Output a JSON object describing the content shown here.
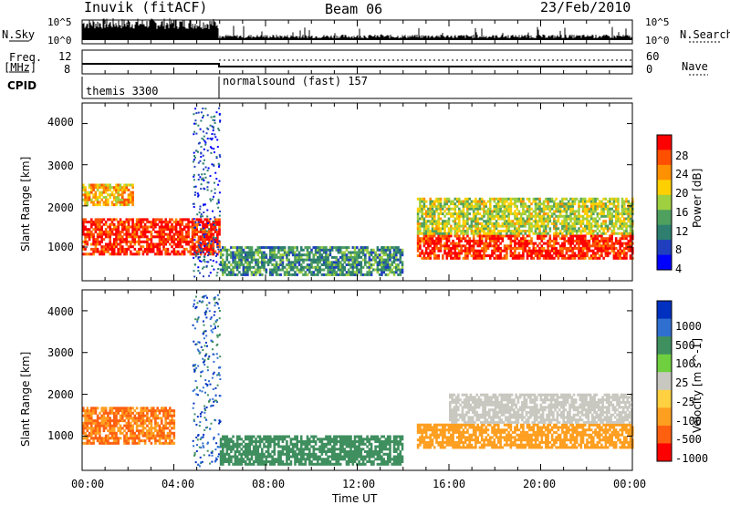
{
  "header": {
    "station": "Inuvik (fitACF)",
    "beam": "Beam 06",
    "date": "23/Feb/2010"
  },
  "strip_labels": {
    "nsky": "N.Sky",
    "nsearch": "N.Search",
    "freq_top": "Freq.",
    "freq_unit": "[MHz]",
    "nave": "Nave",
    "cpid": "CPID"
  },
  "strip_ticks": {
    "nsky_left": [
      "10^5",
      "10^0"
    ],
    "nsearch_right": [
      "10^5",
      "10^0"
    ],
    "freq_left": [
      "12",
      "8"
    ],
    "nave_right": [
      "60",
      "0"
    ]
  },
  "cpid_segments": [
    {
      "label": "themis 3300",
      "start_h": 0,
      "end_h": 6
    },
    {
      "label": "normalsound (fast) 157",
      "start_h": 6,
      "end_h": 24
    }
  ],
  "xlabel": "Time UT",
  "colors": {
    "power_scale": [
      "#0000ff",
      "#1f3fbf",
      "#2e7f6f",
      "#4fa05f",
      "#9fd040",
      "#ffd000",
      "#ff9000",
      "#ff5000",
      "#ff0000"
    ],
    "velocity_scale": [
      "#0030c0",
      "#2f6fd0",
      "#3f8f5f",
      "#6fcf3f",
      "#c8c8c0",
      "#ffd040",
      "#ff9f20",
      "#ff6010",
      "#ff0000"
    ]
  },
  "chart_data": [
    {
      "type": "heatmap",
      "title": "",
      "xlabel": "Time UT",
      "ylabel": "Slant Range [km]",
      "x_ticks": [
        "00:00",
        "04:00",
        "08:00",
        "12:00",
        "16:00",
        "20:00",
        "00:00"
      ],
      "xlim": [
        0,
        24
      ],
      "ylim": [
        180,
        4500
      ],
      "y_ticks": [
        1000,
        2000,
        3000,
        4000
      ],
      "colorbar": {
        "label": "Power [dB]",
        "ticks": [
          4,
          8,
          12,
          16,
          20,
          24,
          28
        ],
        "range": [
          0,
          30
        ]
      },
      "regions": [
        {
          "t": [
            0,
            6
          ],
          "r": [
            800,
            1700
          ],
          "value": 27
        },
        {
          "t": [
            0,
            2.2
          ],
          "r": [
            2000,
            2500
          ],
          "value": 20
        },
        {
          "t": [
            6,
            14
          ],
          "r": [
            300,
            1000
          ],
          "value": 10
        },
        {
          "t": [
            14.6,
            24
          ],
          "r": [
            700,
            1300
          ],
          "value": 27
        },
        {
          "t": [
            14.6,
            24
          ],
          "r": [
            1300,
            2200
          ],
          "value": 16
        }
      ]
    },
    {
      "type": "heatmap",
      "title": "",
      "xlabel": "Time UT",
      "ylabel": "Slant Range [km]",
      "x_ticks": [
        "00:00",
        "04:00",
        "08:00",
        "12:00",
        "16:00",
        "20:00",
        "00:00"
      ],
      "xlim": [
        0,
        24
      ],
      "ylim": [
        180,
        4500
      ],
      "y_ticks": [
        1000,
        2000,
        3000,
        4000
      ],
      "colorbar": {
        "label": "Velocity [m s^-1]",
        "ticks": [
          1000,
          500,
          100,
          25,
          -25,
          -100,
          -500,
          -1000
        ]
      },
      "regions": [
        {
          "t": [
            0,
            4
          ],
          "r": [
            800,
            1700
          ],
          "value": -300
        },
        {
          "t": [
            6,
            14
          ],
          "r": [
            300,
            1000
          ],
          "value": 150
        },
        {
          "t": [
            14.6,
            24
          ],
          "r": [
            700,
            1300
          ],
          "value": -200
        },
        {
          "t": [
            16,
            24
          ],
          "r": [
            1300,
            2000
          ],
          "value": 0
        }
      ]
    }
  ]
}
